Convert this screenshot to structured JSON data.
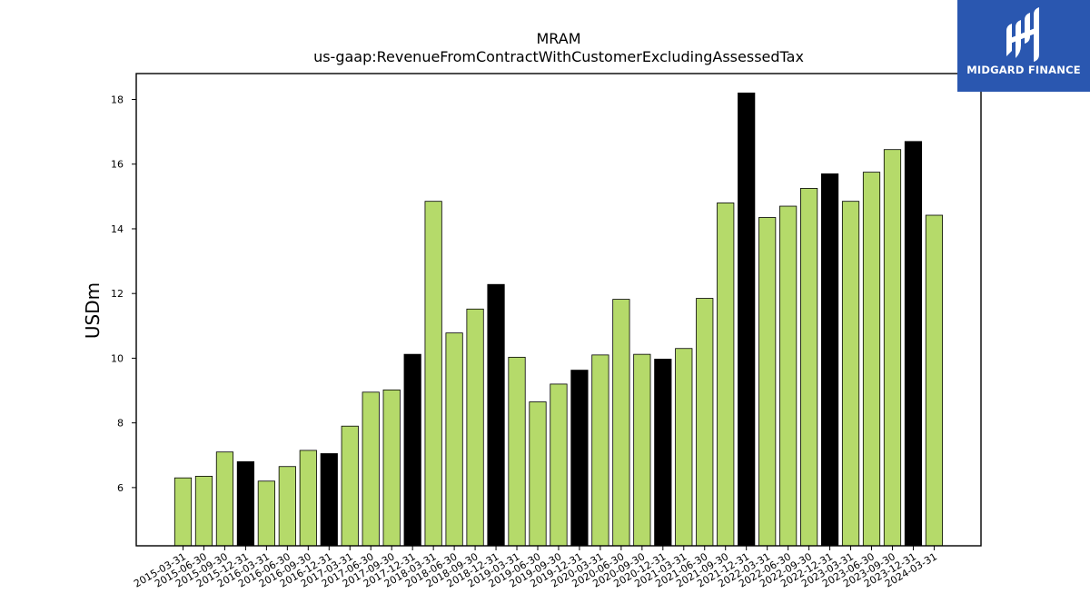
{
  "chart_data": {
    "type": "bar",
    "title": "MRAM",
    "subtitle": "us-gaap:RevenueFromContractWithCustomerExcludingAssessedTax",
    "xlabel": "",
    "ylabel": "USDm",
    "ylim": [
      4.2,
      18.8
    ],
    "yticks": [
      6,
      8,
      10,
      12,
      14,
      16,
      18
    ],
    "grid": false,
    "categories": [
      "2015-03-31",
      "2015-06-30",
      "2015-09-30",
      "2015-12-31",
      "2016-03-31",
      "2016-06-30",
      "2016-09-30",
      "2016-12-31",
      "2017-03-31",
      "2017-06-30",
      "2017-09-30",
      "2017-12-31",
      "2018-03-31",
      "2018-06-30",
      "2018-09-30",
      "2018-12-31",
      "2019-03-31",
      "2019-06-30",
      "2019-09-30",
      "2019-12-31",
      "2020-03-31",
      "2020-06-30",
      "2020-09-30",
      "2020-12-31",
      "2021-03-31",
      "2021-06-30",
      "2021-09-30",
      "2021-12-31",
      "2022-03-31",
      "2022-06-30",
      "2022-09-30",
      "2022-12-31",
      "2023-03-31",
      "2023-06-30",
      "2023-09-30",
      "2023-12-31",
      "2024-03-31"
    ],
    "values": [
      6.3,
      6.35,
      7.1,
      6.8,
      6.2,
      6.65,
      7.15,
      7.05,
      7.9,
      8.95,
      9.02,
      10.12,
      14.85,
      10.78,
      11.52,
      12.28,
      10.03,
      8.65,
      9.2,
      9.63,
      10.1,
      11.82,
      10.12,
      9.97,
      10.3,
      11.85,
      14.8,
      18.2,
      14.35,
      14.7,
      15.25,
      15.7,
      14.85,
      15.75,
      16.45,
      16.7,
      14.42
    ],
    "bar_colors": {
      "default": "#b5da6a",
      "year_end": "#000000",
      "edge": "#000000"
    }
  },
  "logo": {
    "text": "MIDGARD FINANCE",
    "color": "#2a57b0"
  }
}
